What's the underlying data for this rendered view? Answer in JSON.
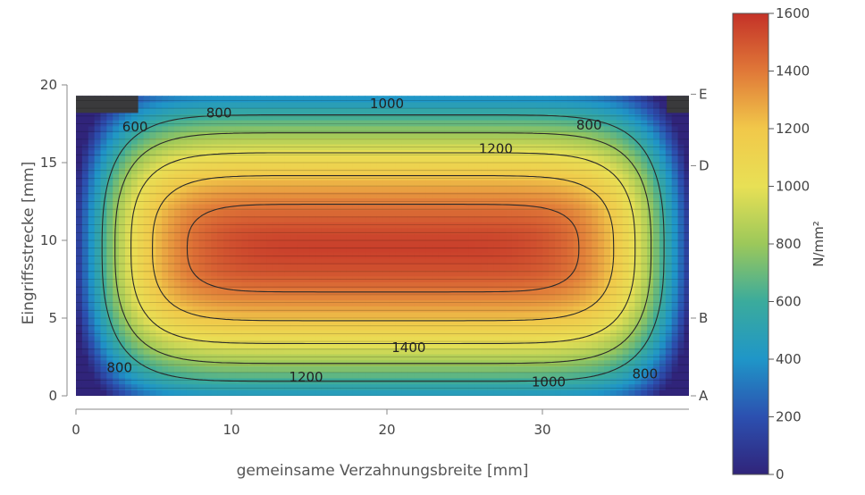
{
  "chart_data": {
    "type": "heatmap",
    "xlabel": "gemeinsame Verzahnungsbreite [mm]",
    "ylabel": "Eingriffsstrecke [mm]",
    "xlim": [
      0,
      39.5
    ],
    "ylim": [
      0,
      19.3
    ],
    "x_axis_range": [
      0,
      40
    ],
    "y_axis_range": [
      0,
      20
    ],
    "x_ticks": [
      0,
      10,
      20,
      30
    ],
    "y_ticks": [
      0,
      5,
      10,
      15,
      20
    ],
    "grid": false,
    "secondary_y_ticks": [
      {
        "label": "A",
        "y": 0
      },
      {
        "label": "B",
        "y": 5
      },
      {
        "label": "D",
        "y": 14.8
      },
      {
        "label": "E",
        "y": 19.4
      }
    ],
    "z_range": [
      0,
      1600
    ],
    "colorbar": {
      "label": "N/mm²",
      "ticks": [
        0,
        200,
        400,
        600,
        800,
        1000,
        1200,
        1400,
        1600
      ]
    },
    "contour_levels": [
      600,
      800,
      1000,
      1200,
      1400
    ],
    "contour_labels": [
      {
        "text": "600",
        "x": 3.8,
        "y": 17.3
      },
      {
        "text": "800",
        "x": 9.2,
        "y": 18.2
      },
      {
        "text": "1000",
        "x": 20.0,
        "y": 18.8
      },
      {
        "text": "800",
        "x": 33.0,
        "y": 17.4
      },
      {
        "text": "1200",
        "x": 27.0,
        "y": 15.9
      },
      {
        "text": "1400",
        "x": 21.4,
        "y": 3.1
      },
      {
        "text": "1200",
        "x": 14.8,
        "y": 1.2
      },
      {
        "text": "800",
        "x": 2.8,
        "y": 1.8
      },
      {
        "text": "1000",
        "x": 30.4,
        "y": 0.9
      },
      {
        "text": "800",
        "x": 36.6,
        "y": 1.4
      }
    ],
    "peak_value_estimate": 1560
  }
}
